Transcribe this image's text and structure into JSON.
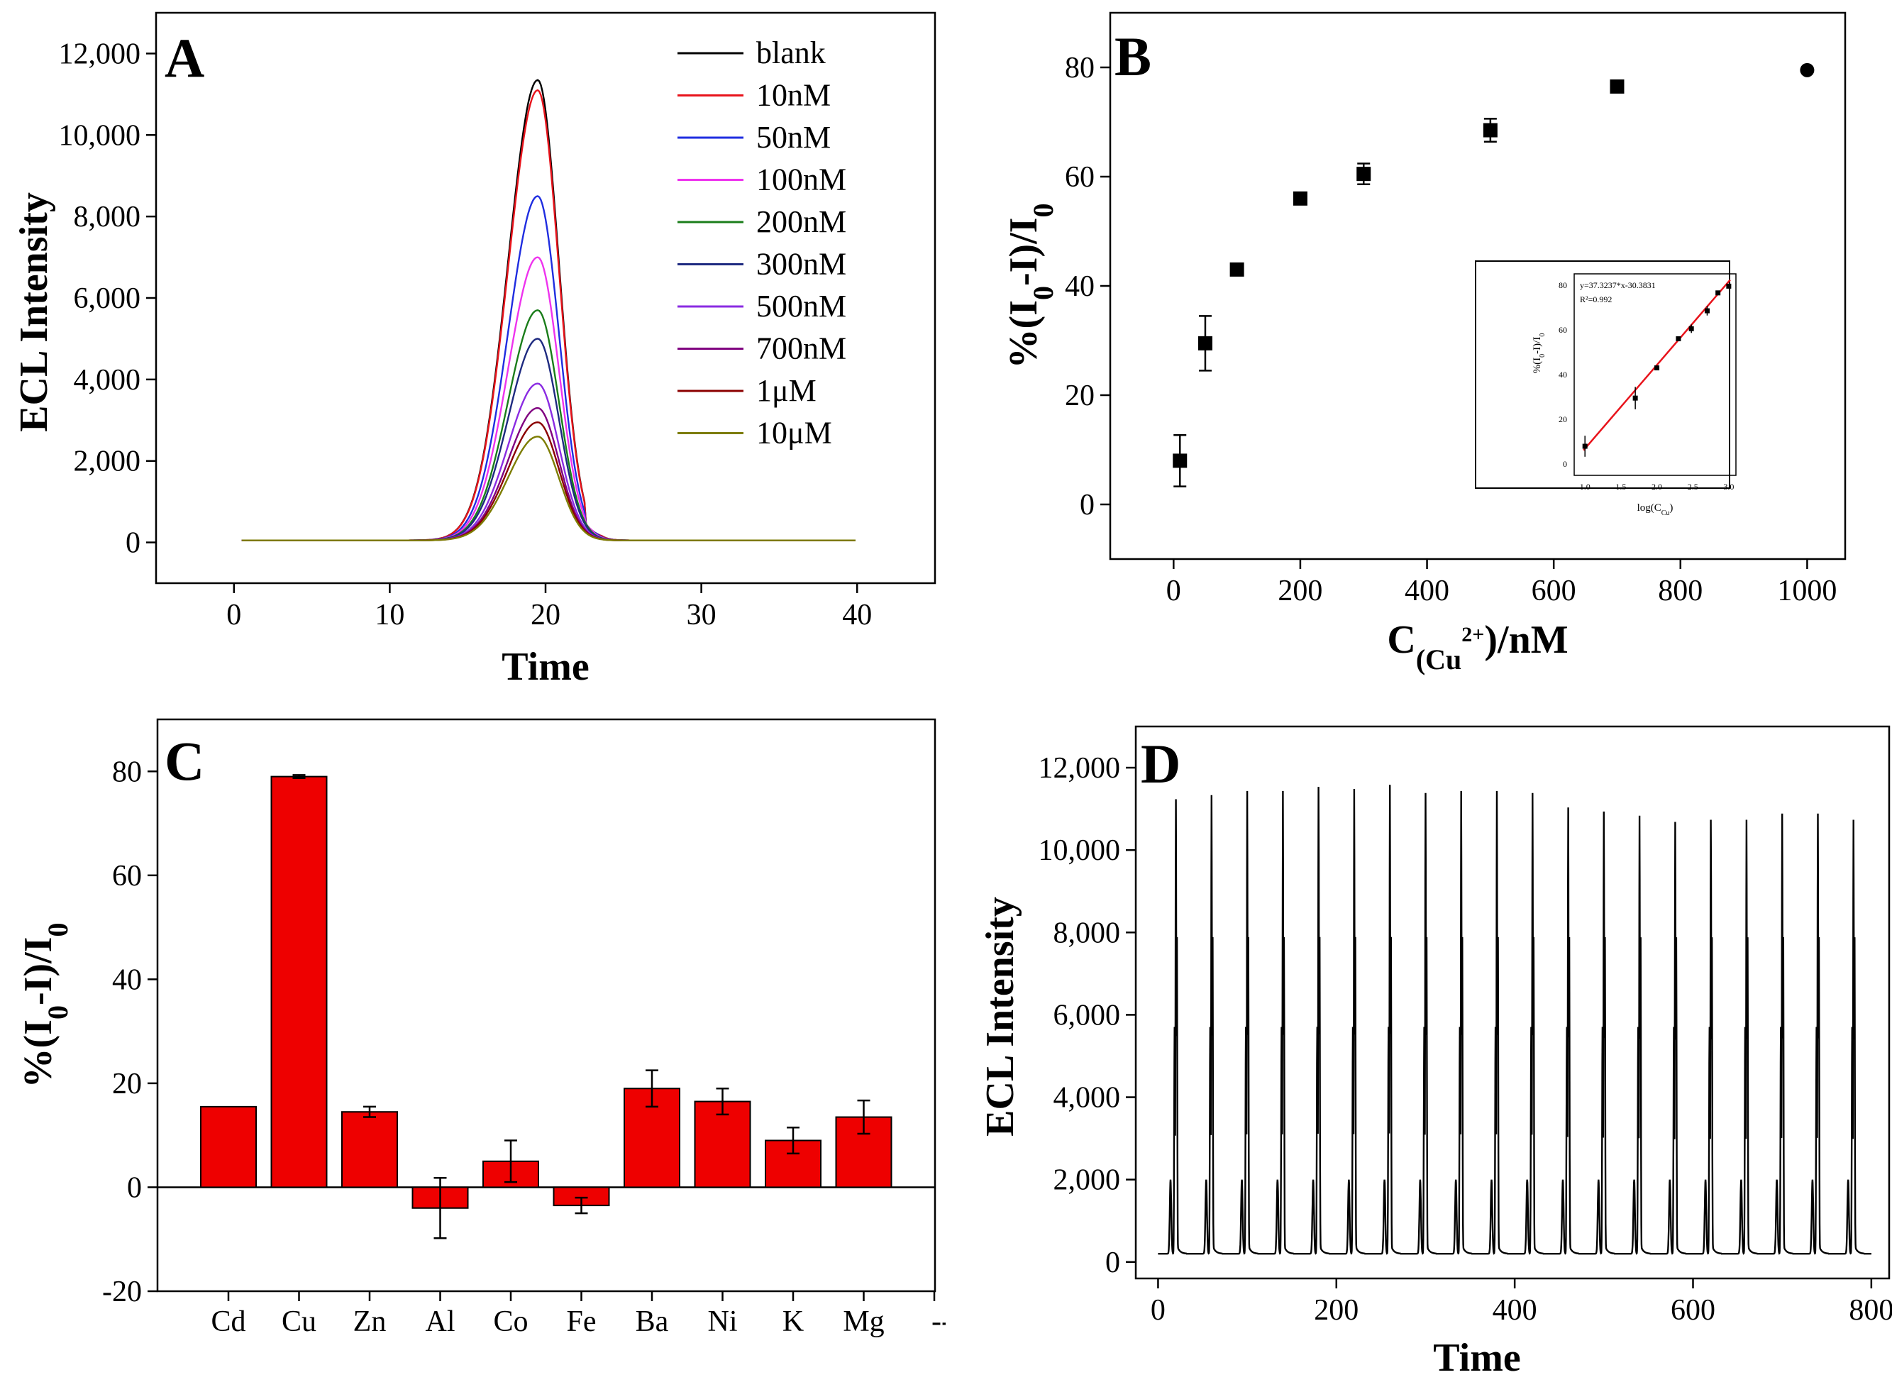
{
  "figure": {
    "panels": [
      "A",
      "B",
      "C",
      "D"
    ]
  },
  "chart_data": [
    {
      "id": "A",
      "type": "line",
      "letter": "A",
      "xlabel": "Time",
      "ylabel": "ECL Intensity",
      "xlim": [
        -5,
        45
      ],
      "ylim": [
        -1000,
        13000
      ],
      "xticks": [
        0,
        10,
        20,
        30,
        40
      ],
      "yticks": [
        0,
        2000,
        4000,
        6000,
        8000,
        10000,
        12000
      ],
      "ytick_labels": [
        "0",
        "2,000",
        "4,000",
        "6,000",
        "8,000",
        "10,000",
        "12,000"
      ],
      "legend_position": "top-right",
      "peak_center": 19.5,
      "baseline": 50,
      "x_range": [
        0.5,
        40
      ],
      "series": [
        {
          "name": "blank",
          "color": "#000000",
          "peak": 11350
        },
        {
          "name": "10nM",
          "color": "#e8131b",
          "peak": 11100
        },
        {
          "name": "50nM",
          "color": "#1f2de0",
          "peak": 8500
        },
        {
          "name": "100nM",
          "color": "#ee33ee",
          "peak": 7000
        },
        {
          "name": "200nM",
          "color": "#1a7d1a",
          "peak": 5700
        },
        {
          "name": "300nM",
          "color": "#1e2a80",
          "peak": 5000
        },
        {
          "name": "500nM",
          "color": "#8a2be2",
          "peak": 3900
        },
        {
          "name": "700nM",
          "color": "#800080",
          "peak": 3300
        },
        {
          "name": "1μM",
          "color": "#8b0000",
          "peak": 2950
        },
        {
          "name": "10μM",
          "color": "#7d7d00",
          "peak": 2600
        }
      ]
    },
    {
      "id": "B",
      "type": "scatter",
      "letter": "B",
      "xlabel_main": "C",
      "xlabel_sub": "(Cu",
      "xlabel_sup": "2+",
      "xlabel_tail": ")/nM",
      "ylabel": "%(I0-I)/I0",
      "xlim": [
        -100,
        1060
      ],
      "ylim": [
        -10,
        90
      ],
      "xticks": [
        0,
        200,
        400,
        600,
        800,
        1000
      ],
      "yticks": [
        0,
        20,
        40,
        60,
        80
      ],
      "x": [
        10,
        50,
        100,
        200,
        300,
        500,
        700,
        1000
      ],
      "y": [
        8,
        29.5,
        43,
        56,
        60.5,
        68.5,
        76.5,
        79.5
      ],
      "err": [
        4.7,
        5,
        0.8,
        0.7,
        1.9,
        2.1,
        0.8,
        0.5
      ],
      "inset": {
        "equation": "y=37.3237*x-30.3831",
        "r2": "R²=0.992",
        "xlabel": "log(C",
        "xlabel_sub": "Cu",
        "xlabel_tail": ")",
        "ylabel": "%(I0-I)/I0",
        "xticks": [
          "1.0",
          "1.5",
          "2.0",
          "2.5",
          "3.0"
        ],
        "yticks": [
          "0",
          "20",
          "40",
          "60",
          "80"
        ],
        "x": [
          1.0,
          1.7,
          2.0,
          2.3,
          2.48,
          2.7,
          2.85,
          3.0
        ],
        "y": [
          8,
          29.5,
          43,
          56,
          60.5,
          68.5,
          76.5,
          79.5
        ],
        "err": [
          4.7,
          5,
          0.8,
          0.7,
          1.9,
          2.1,
          0.8,
          0.5
        ],
        "xlim": [
          0.85,
          3.1
        ],
        "ylim": [
          -5,
          85
        ],
        "fit_color": "#e8131b"
      }
    },
    {
      "id": "C",
      "type": "bar",
      "letter": "C",
      "ylabel": "%(I0-I)/I0",
      "ylim": [
        -20,
        90
      ],
      "yticks": [
        -20,
        0,
        20,
        40,
        60,
        80
      ],
      "categories": [
        "Cd",
        "Cu",
        "Zn",
        "Al",
        "Co",
        "Fe",
        "Ba",
        "Ni",
        "K",
        "Mg"
      ],
      "values": [
        15.5,
        79,
        14.5,
        -4,
        5,
        -3.5,
        19,
        16.5,
        9,
        13.5
      ],
      "errors": [
        0,
        0.3,
        1,
        5.8,
        4,
        1.5,
        3.5,
        2.5,
        2.5,
        3.2
      ],
      "extra_tick_label": "--",
      "bar_color": "#ee0000"
    },
    {
      "id": "D",
      "type": "line",
      "letter": "D",
      "xlabel": "Time",
      "ylabel": "ECL Intensity",
      "xlim": [
        -25,
        820
      ],
      "ylim": [
        -400,
        13000
      ],
      "xticks": [
        0,
        200,
        400,
        600,
        800
      ],
      "yticks": [
        0,
        2000,
        4000,
        6000,
        8000,
        10000,
        12000
      ],
      "ytick_labels": [
        "0",
        "2,000",
        "4,000",
        "6,000",
        "8,000",
        "10,000",
        "12,000"
      ],
      "baseline": 200,
      "peak_times": [
        20,
        60,
        100,
        140,
        180,
        220,
        260,
        300,
        340,
        380,
        420,
        460,
        500,
        540,
        580,
        620,
        660,
        700,
        740,
        780
      ],
      "peak_heights": [
        11200,
        11300,
        11400,
        11400,
        11500,
        11450,
        11550,
        11350,
        11400,
        11400,
        11350,
        11000,
        10900,
        10800,
        10650,
        10700,
        10700,
        10850,
        10850,
        10700
      ]
    }
  ]
}
